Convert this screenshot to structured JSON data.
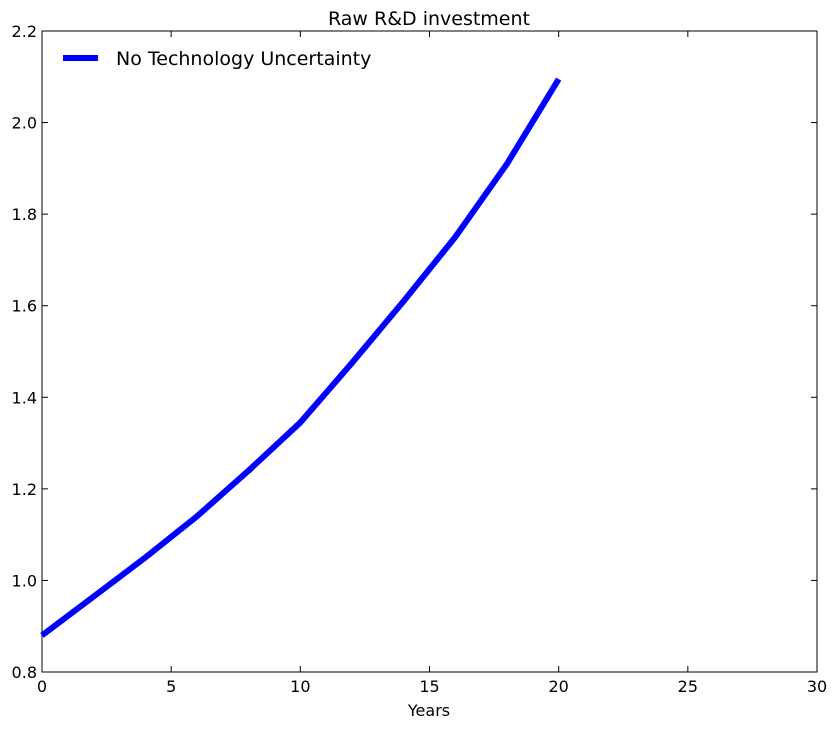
{
  "chart_data": {
    "type": "line",
    "title": "Raw R&D investment",
    "xlabel": "Years",
    "ylabel": "",
    "xlim": [
      0,
      30
    ],
    "ylim": [
      0.8,
      2.2
    ],
    "xticks": [
      0,
      5,
      10,
      15,
      20,
      25,
      30
    ],
    "yticks": [
      0.8,
      1.0,
      1.2,
      1.4,
      1.6,
      1.8,
      2.0,
      2.2
    ],
    "xtick_labels": [
      "0",
      "5",
      "10",
      "15",
      "20",
      "25",
      "30"
    ],
    "ytick_labels": [
      "0.8",
      "1.0",
      "1.2",
      "1.4",
      "1.6",
      "1.8",
      "2.0",
      "2.2"
    ],
    "grid": false,
    "legend_position": "top-left",
    "series": [
      {
        "name": "No Technology Uncertainty",
        "color": "#0000ff",
        "x": [
          0,
          2,
          4,
          6,
          8,
          10,
          12,
          14,
          16,
          18,
          20
        ],
        "y": [
          0.88,
          0.965,
          1.05,
          1.14,
          1.24,
          1.345,
          1.475,
          1.61,
          1.75,
          1.91,
          2.095
        ]
      }
    ]
  }
}
